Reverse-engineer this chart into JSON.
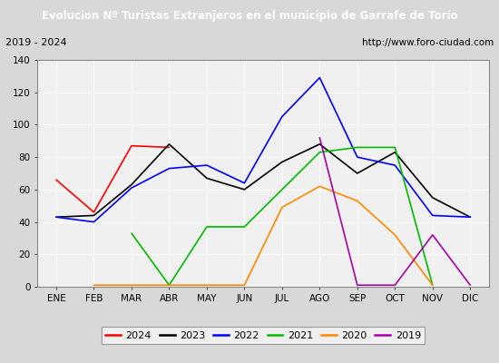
{
  "title": "Evolucion Nº Turistas Extranjeros en el municipio de Garrafe de Torío",
  "subtitle_left": "2019 - 2024",
  "subtitle_right": "http://www.foro-ciudad.com",
  "months": [
    "ENE",
    "FEB",
    "MAR",
    "ABR",
    "MAY",
    "JUN",
    "JUL",
    "AGO",
    "SEP",
    "OCT",
    "NOV",
    "DIC"
  ],
  "series": {
    "2024": {
      "color": "#ff0000",
      "data": [
        66,
        46,
        87,
        86,
        null,
        null,
        null,
        null,
        null,
        null,
        null,
        null
      ]
    },
    "2023": {
      "color": "#000000",
      "data": [
        43,
        44,
        63,
        88,
        67,
        60,
        77,
        88,
        70,
        83,
        55,
        43
      ]
    },
    "2022": {
      "color": "#0000ff",
      "data": [
        43,
        40,
        61,
        73,
        75,
        64,
        105,
        129,
        80,
        75,
        44,
        43
      ]
    },
    "2021": {
      "color": "#00bb00",
      "data": [
        null,
        null,
        33,
        1,
        37,
        37,
        60,
        83,
        86,
        86,
        1,
        null
      ]
    },
    "2020": {
      "color": "#ff8800",
      "data": [
        null,
        1,
        null,
        null,
        1,
        1,
        49,
        62,
        53,
        32,
        1,
        null
      ]
    },
    "2019": {
      "color": "#aa00aa",
      "data": [
        null,
        null,
        null,
        null,
        null,
        null,
        null,
        92,
        1,
        1,
        32,
        1
      ]
    }
  },
  "ylim": [
    0,
    140
  ],
  "yticks": [
    0,
    20,
    40,
    60,
    80,
    100,
    120,
    140
  ],
  "title_bg": "#3b6abf",
  "title_color": "#ffffff",
  "outer_bg": "#d8d8d8",
  "subtitle_bg": "#f0f0f0",
  "inner_bg": "#f0f0f0",
  "legend_order": [
    "2024",
    "2023",
    "2022",
    "2021",
    "2020",
    "2019"
  ]
}
